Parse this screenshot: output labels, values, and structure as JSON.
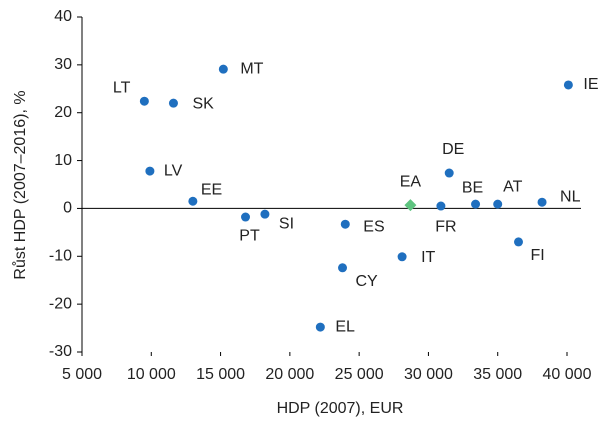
{
  "chart_data": {
    "type": "scatter",
    "xlabel": "HDP (2007),  EUR",
    "ylabel": "Růst HDP (2007–2016), %",
    "xlim": [
      5000,
      40000
    ],
    "xticks": [
      {
        "value": 5000,
        "label": "5 000"
      },
      {
        "value": 10000,
        "label": "10 000"
      },
      {
        "value": 15000,
        "label": "15 000"
      },
      {
        "value": 20000,
        "label": "20 000"
      },
      {
        "value": 25000,
        "label": "25 000"
      },
      {
        "value": 30000,
        "label": "30 000"
      },
      {
        "value": 35000,
        "label": "35 000"
      },
      {
        "value": 40000,
        "label": "40 000"
      }
    ],
    "ylim": [
      -30,
      40
    ],
    "yticks": [
      -30,
      -20,
      -10,
      0,
      10,
      20,
      30,
      40
    ],
    "series": [
      {
        "color": "#1f6fbf",
        "marker": "circle",
        "labels": [
          "LT",
          "SK",
          "MT",
          "LV",
          "EE",
          "PT",
          "SI",
          "ES",
          "CY",
          "EL",
          "IT",
          "FR",
          "DE",
          "BE",
          "AT",
          "FI",
          "NL",
          "IE"
        ],
        "x": [
          9500,
          11600,
          15200,
          9900,
          13000,
          16800,
          18200,
          24000,
          23800,
          22200,
          28100,
          30900,
          31500,
          33400,
          35000,
          36500,
          38200,
          40100
        ],
        "values": [
          22.4,
          22.0,
          29.1,
          7.8,
          1.5,
          -1.8,
          -1.2,
          -3.3,
          -12.4,
          -24.8,
          -10.1,
          0.5,
          7.4,
          0.9,
          0.9,
          -7.0,
          1.3,
          25.8
        ]
      },
      {
        "color": "#5fc480",
        "marker": "diamond",
        "labels": [
          "EA"
        ],
        "x": [
          28700
        ],
        "values": [
          0.7
        ]
      }
    ]
  }
}
